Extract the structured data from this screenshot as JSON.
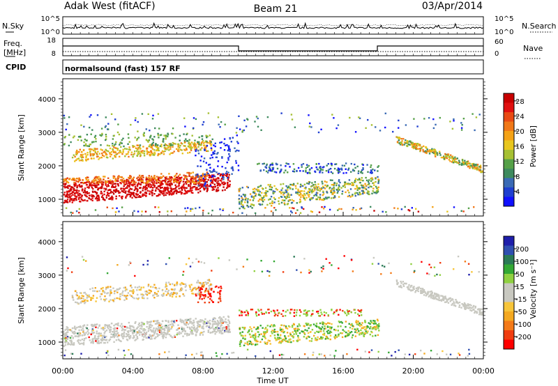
{
  "header": {
    "station": "Adak West (fitACF)",
    "beam": "Beam 21",
    "date": "03/Apr/2014"
  },
  "noise_panel": {
    "left_label": "N.Sky",
    "right_label": "N.Search",
    "left_ticks": [
      "10^5",
      "10^0"
    ],
    "right_ticks": [
      "10^5",
      "10^0"
    ]
  },
  "freq_panel": {
    "left_label_1": "Freq.",
    "left_label_2": "[MHz]",
    "right_label": "Nave",
    "left_ticks": [
      "18",
      "8"
    ],
    "right_ticks": [
      "60",
      "0"
    ]
  },
  "cpid_panel": {
    "label": "CPID",
    "text": "normalsound (fast) 157 RF"
  },
  "colors": {
    "power_scale": [
      "#1010ff",
      "#1f3fd0",
      "#3a6ab5",
      "#3e8a5e",
      "#55a048",
      "#a6c033",
      "#e8c61e",
      "#f4a216",
      "#f07818",
      "#e84a14",
      "#e01010",
      "#c80000"
    ],
    "velocity_scale": [
      "#ff0000",
      "#f03d10",
      "#f47a18",
      "#f4a820",
      "#f7c53a",
      "#c8c8c0",
      "#c8c8c0",
      "#8fd040",
      "#33a833",
      "#2a7a55",
      "#2f4fb0",
      "#1e1eaa"
    ]
  },
  "chart_data": [
    {
      "type": "heatmap",
      "name": "power",
      "ylabel": "Slant Range [km]",
      "xlabel": "Time UT",
      "x_ticks": [
        "00:00",
        "04:00",
        "08:00",
        "12:00",
        "16:00",
        "20:00",
        "00:00"
      ],
      "y_ticks": [
        1000,
        2000,
        3000,
        4000
      ],
      "ylim": [
        500,
        4600
      ],
      "xlim_hours": [
        0,
        24
      ],
      "colorbar_label": "Power [dB]",
      "colorbar_ticks": [
        4,
        8,
        12,
        16,
        20,
        24,
        28
      ],
      "colorbar_range": [
        0,
        30
      ]
    },
    {
      "type": "heatmap",
      "name": "velocity",
      "ylabel": "Slant Range [km]",
      "xlabel": "Time UT",
      "x_ticks": [
        "00:00",
        "04:00",
        "08:00",
        "12:00",
        "16:00",
        "20:00",
        "00:00"
      ],
      "y_ticks": [
        1000,
        2000,
        3000,
        4000
      ],
      "ylim": [
        500,
        4600
      ],
      "xlim_hours": [
        0,
        24
      ],
      "colorbar_label": "Velocity [m s⁻¹]",
      "colorbar_ticks": [
        200,
        100,
        50,
        15,
        -15,
        -50,
        -100,
        -200
      ]
    }
  ]
}
